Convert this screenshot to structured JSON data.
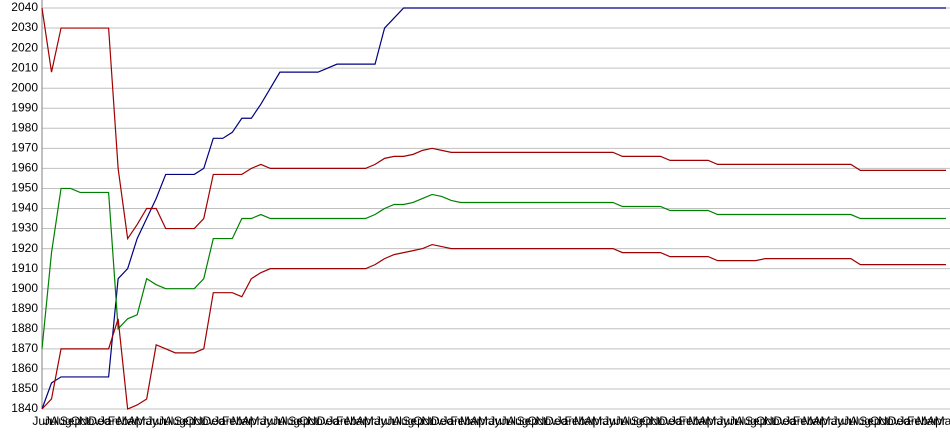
{
  "chart_data": {
    "type": "line",
    "categories": [
      "Jun",
      "Jul",
      "Aug",
      "Sep",
      "Oct",
      "Nov",
      "Dec",
      "Jan",
      "Feb",
      "Mar",
      "Apr",
      "May",
      "Jun",
      "Jul",
      "Aug",
      "Sep",
      "Oct",
      "Nov",
      "Dec",
      "Jan",
      "Feb",
      "Mar",
      "Apr",
      "May",
      "Jun",
      "Jul",
      "Aug",
      "Sep",
      "Oct",
      "Nov",
      "Dec",
      "Jan",
      "Feb",
      "Mar",
      "Apr",
      "May",
      "Jun",
      "Jul",
      "Aug",
      "Sep",
      "Oct",
      "Nov",
      "Dec",
      "Jan",
      "Feb",
      "Mar",
      "Apr",
      "May",
      "Jun",
      "Jul",
      "Aug",
      "Sep",
      "Oct",
      "Nov",
      "Dec",
      "Jan",
      "Feb",
      "Mar",
      "Apr",
      "May",
      "Jun",
      "Jul",
      "Aug",
      "Sep",
      "Oct",
      "Nov",
      "Dec",
      "Jan",
      "Feb",
      "Mar",
      "Apr",
      "May",
      "Jun",
      "Jul",
      "Aug",
      "Sep",
      "Oct",
      "Nov",
      "Dec",
      "Jan",
      "Feb",
      "Mar",
      "Apr",
      "May",
      "Jun",
      "Jul",
      "Aug",
      "Sep",
      "Oct",
      "Nov",
      "Dec",
      "Jan",
      "Feb",
      "Mar",
      "Apr",
      "May"
    ],
    "series": [
      {
        "color": "#000080",
        "values": [
          1840,
          1853,
          1856,
          1856,
          1856,
          1856,
          1856,
          1856,
          1905,
          1910,
          1925,
          1935,
          1945,
          1957,
          1957,
          1957,
          1957,
          1960,
          1975,
          1975,
          1978,
          1985,
          1985,
          1992,
          2000,
          2008,
          2008,
          2008,
          2008,
          2008,
          2010,
          2012,
          2012,
          2012,
          2012,
          2012,
          2030,
          2035,
          2040,
          2040,
          2040,
          2040,
          2040,
          2040,
          2040,
          2040,
          2040,
          2040,
          2040,
          2040,
          2040,
          2040,
          2040,
          2040,
          2040,
          2040,
          2040,
          2040,
          2040,
          2040,
          2040,
          2040,
          2040,
          2040,
          2040,
          2040,
          2040,
          2040,
          2040,
          2040,
          2040,
          2040,
          2040,
          2040,
          2040,
          2040,
          2040,
          2040,
          2040,
          2040,
          2040,
          2040,
          2040,
          2040,
          2040,
          2040,
          2040,
          2040,
          2040,
          2040,
          2040,
          2040,
          2040,
          2040,
          2040,
          2040
        ]
      },
      {
        "color": "#008000",
        "values": [
          1870,
          1918,
          1950,
          1950,
          1948,
          1948,
          1948,
          1948,
          1880,
          1885,
          1887,
          1905,
          1902,
          1900,
          1900,
          1900,
          1900,
          1905,
          1925,
          1925,
          1925,
          1935,
          1935,
          1937,
          1935,
          1935,
          1935,
          1935,
          1935,
          1935,
          1935,
          1935,
          1935,
          1935,
          1935,
          1937,
          1940,
          1942,
          1942,
          1943,
          1945,
          1947,
          1946,
          1944,
          1943,
          1943,
          1943,
          1943,
          1943,
          1943,
          1943,
          1943,
          1943,
          1943,
          1943,
          1943,
          1943,
          1943,
          1943,
          1943,
          1943,
          1941,
          1941,
          1941,
          1941,
          1941,
          1939,
          1939,
          1939,
          1939,
          1939,
          1937,
          1937,
          1937,
          1937,
          1937,
          1937,
          1937,
          1937,
          1937,
          1937,
          1937,
          1937,
          1937,
          1937,
          1937,
          1935,
          1935,
          1935,
          1935,
          1935,
          1935,
          1935,
          1935,
          1935,
          1935
        ]
      },
      {
        "color": "#a00000",
        "values": [
          2040,
          2008,
          2030,
          2030,
          2030,
          2030,
          2030,
          2030,
          1960,
          1925,
          1932,
          1940,
          1940,
          1930,
          1930,
          1930,
          1930,
          1935,
          1957,
          1957,
          1957,
          1957,
          1960,
          1962,
          1960,
          1960,
          1960,
          1960,
          1960,
          1960,
          1960,
          1960,
          1960,
          1960,
          1960,
          1962,
          1965,
          1966,
          1966,
          1967,
          1969,
          1970,
          1969,
          1968,
          1968,
          1968,
          1968,
          1968,
          1968,
          1968,
          1968,
          1968,
          1968,
          1968,
          1968,
          1968,
          1968,
          1968,
          1968,
          1968,
          1968,
          1966,
          1966,
          1966,
          1966,
          1966,
          1964,
          1964,
          1964,
          1964,
          1964,
          1962,
          1962,
          1962,
          1962,
          1962,
          1962,
          1962,
          1962,
          1962,
          1962,
          1962,
          1962,
          1962,
          1962,
          1962,
          1959,
          1959,
          1959,
          1959,
          1959,
          1959,
          1959,
          1959,
          1959,
          1959
        ]
      },
      {
        "color": "#a00000",
        "values": [
          1840,
          1845,
          1870,
          1870,
          1870,
          1870,
          1870,
          1870,
          1885,
          1840,
          1842,
          1845,
          1872,
          1870,
          1868,
          1868,
          1868,
          1870,
          1898,
          1898,
          1898,
          1896,
          1905,
          1908,
          1910,
          1910,
          1910,
          1910,
          1910,
          1910,
          1910,
          1910,
          1910,
          1910,
          1910,
          1912,
          1915,
          1917,
          1918,
          1919,
          1920,
          1922,
          1921,
          1920,
          1920,
          1920,
          1920,
          1920,
          1920,
          1920,
          1920,
          1920,
          1920,
          1920,
          1920,
          1920,
          1920,
          1920,
          1920,
          1920,
          1920,
          1918,
          1918,
          1918,
          1918,
          1918,
          1916,
          1916,
          1916,
          1916,
          1916,
          1914,
          1914,
          1914,
          1914,
          1914,
          1915,
          1915,
          1915,
          1915,
          1915,
          1915,
          1915,
          1915,
          1915,
          1915,
          1912,
          1912,
          1912,
          1912,
          1912,
          1912,
          1912,
          1912,
          1912,
          1912
        ]
      }
    ],
    "ylim": [
      1840,
      2040
    ],
    "yticks": [
      1840,
      1850,
      1860,
      1870,
      1880,
      1890,
      1900,
      1910,
      1920,
      1930,
      1940,
      1950,
      1960,
      1970,
      1980,
      1990,
      2000,
      2010,
      2020,
      2030,
      2040
    ],
    "grid": true
  }
}
